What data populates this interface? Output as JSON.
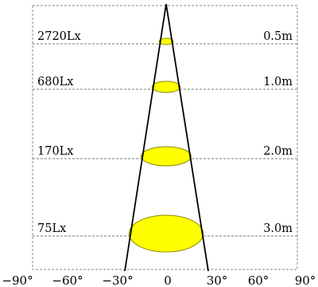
{
  "diagram": {
    "rows": [
      {
        "illuminance": "2720Lx",
        "distance": "0.5m",
        "distance_m": 0.5
      },
      {
        "illuminance": "680Lx",
        "distance": "1.0m",
        "distance_m": 1.0
      },
      {
        "illuminance": "170Lx",
        "distance": "2.0m",
        "distance_m": 2.0
      },
      {
        "illuminance": "75Lx",
        "distance": "3.0m",
        "distance_m": 3.0
      }
    ],
    "angle_ticks": [
      "−90°",
      "−60°",
      "−30°",
      "0",
      "30°",
      "60°",
      "90°"
    ],
    "colors": {
      "spot_fill": "#ffff00",
      "spot_stroke": "#8a8a00",
      "beam_line": "#000000",
      "dash_line": "#777777",
      "frame": "#888888"
    }
  }
}
